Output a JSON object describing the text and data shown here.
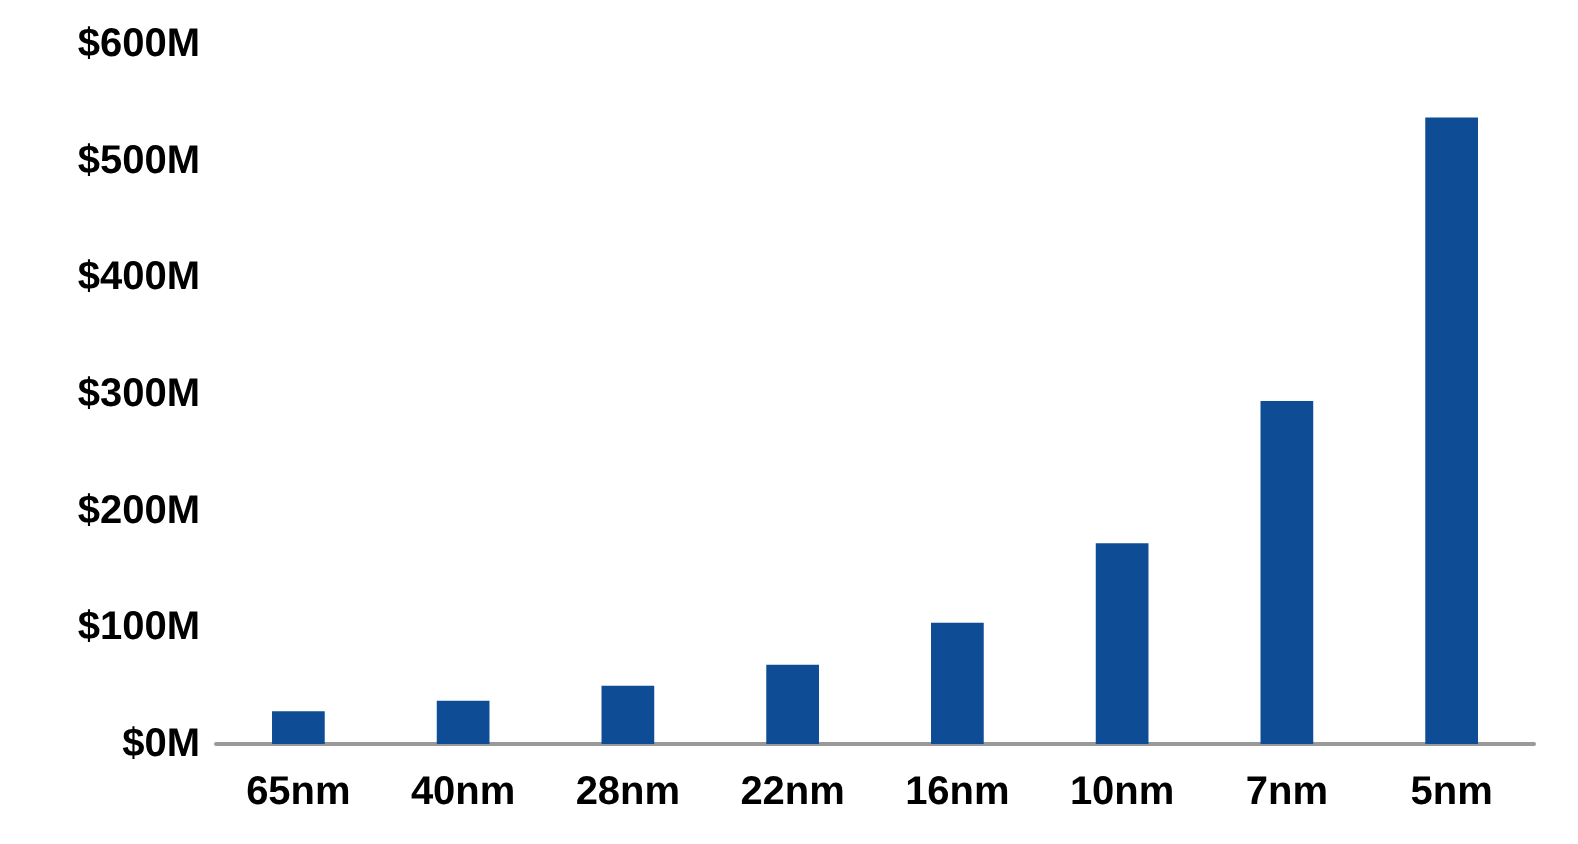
{
  "chart_data": {
    "type": "bar",
    "categories": [
      "65nm",
      "40nm",
      "28nm",
      "22nm",
      "16nm",
      "10nm",
      "7nm",
      "5nm"
    ],
    "values": [
      28,
      37,
      50,
      68,
      104,
      172,
      294,
      537
    ],
    "color": "#0f4c96",
    "ylim": [
      0,
      600
    ],
    "yticks": [
      {
        "value": 0,
        "label": "$0M"
      },
      {
        "value": 100,
        "label": "$100M"
      },
      {
        "value": 200,
        "label": "$200M"
      },
      {
        "value": 300,
        "label": "$300M"
      },
      {
        "value": 400,
        "label": "$400M"
      },
      {
        "value": 500,
        "label": "$500M"
      },
      {
        "value": 600,
        "label": "$600M"
      }
    ],
    "grid": false
  }
}
